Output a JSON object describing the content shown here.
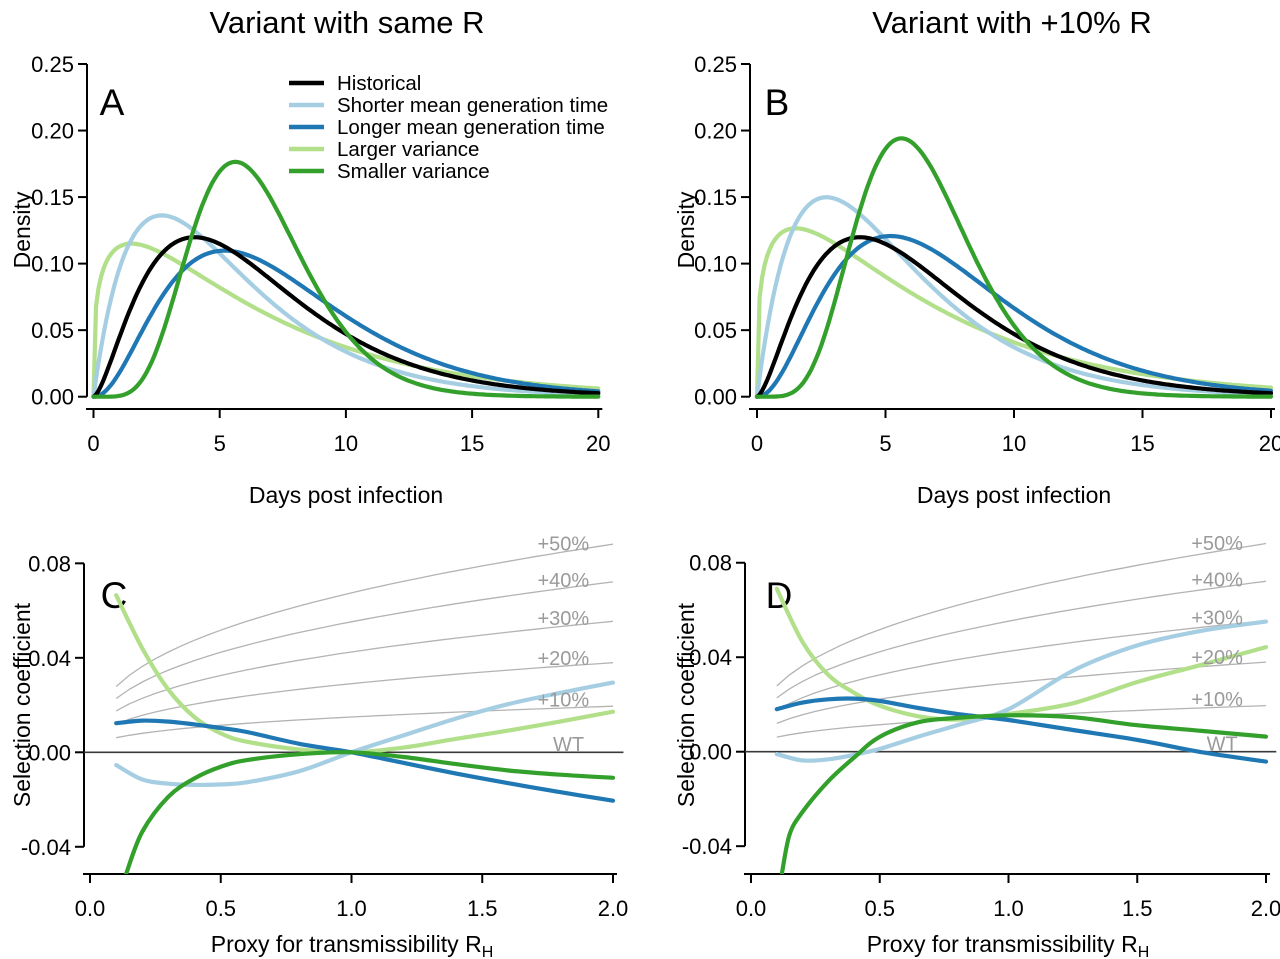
{
  "figure": {
    "left_title": "Variant with same R",
    "right_title": "Variant with +10% R"
  },
  "legend": {
    "entries": [
      {
        "label": "Historical",
        "color": "#000000"
      },
      {
        "label": "Shorter mean generation time",
        "color": "#A6CEE3"
      },
      {
        "label": "Longer mean generation time",
        "color": "#1F78B4"
      },
      {
        "label": "Larger variance",
        "color": "#B2DF8A"
      },
      {
        "label": "Smaller variance",
        "color": "#33A02C"
      }
    ]
  },
  "chart_data": [
    {
      "id": "A",
      "panel_label": "A",
      "type": "line",
      "title": "Variant with same R",
      "xlabel": "Days post infection",
      "ylabel": "Density",
      "xlim": [
        0,
        20
      ],
      "ylim": [
        0,
        0.25
      ],
      "xticks": [
        {
          "v": 0,
          "t": "0"
        },
        {
          "v": 5,
          "t": "5"
        },
        {
          "v": 10,
          "t": "10"
        },
        {
          "v": 15,
          "t": "15"
        },
        {
          "v": 20,
          "t": "20"
        }
      ],
      "yticks": [
        {
          "v": 0,
          "t": "0.00"
        },
        {
          "v": 0.05,
          "t": "0.05"
        },
        {
          "v": 0.1,
          "t": "0.10"
        },
        {
          "v": 0.15,
          "t": "0.15"
        },
        {
          "v": 0.2,
          "t": "0.20"
        },
        {
          "v": 0.25,
          "t": "0.25"
        }
      ],
      "model": "gamma_density",
      "has_legend": true,
      "series": [
        {
          "name": "Larger variance",
          "color": "#B2DF8A",
          "shape": 1.3,
          "scale": 5.0,
          "multiplier": 1.0,
          "peak_x": 1.5,
          "peak_y": 0.115
        },
        {
          "name": "Shorter mean generation time",
          "color": "#A6CEE3",
          "shape": 2.0,
          "scale": 2.7,
          "multiplier": 1.0,
          "peak_x": 2.7,
          "peak_y": 0.134
        },
        {
          "name": "Longer mean generation time",
          "color": "#1F78B4",
          "shape": 3.2,
          "scale": 2.36,
          "multiplier": 1.0,
          "peak_x": 5.2,
          "peak_y": 0.111
        },
        {
          "name": "Historical",
          "color": "#000000",
          "shape": 2.6,
          "scale": 2.5,
          "multiplier": 1.0,
          "peak_x": 4.0,
          "peak_y": 0.12
        },
        {
          "name": "Smaller variance",
          "color": "#33A02C",
          "shape": 7.34,
          "scale": 0.886,
          "multiplier": 1.0,
          "peak_x": 5.6,
          "peak_y": 0.176
        }
      ]
    },
    {
      "id": "B",
      "panel_label": "B",
      "type": "line",
      "title": "Variant with +10% R",
      "xlabel": "Days post infection",
      "ylabel": "Density",
      "xlim": [
        0,
        20
      ],
      "ylim": [
        0,
        0.25
      ],
      "xticks": [
        {
          "v": 0,
          "t": "0"
        },
        {
          "v": 5,
          "t": "5"
        },
        {
          "v": 10,
          "t": "10"
        },
        {
          "v": 15,
          "t": "15"
        },
        {
          "v": 20,
          "t": "20"
        }
      ],
      "yticks": [
        {
          "v": 0,
          "t": "0.00"
        },
        {
          "v": 0.05,
          "t": "0.05"
        },
        {
          "v": 0.1,
          "t": "0.10"
        },
        {
          "v": 0.15,
          "t": "0.15"
        },
        {
          "v": 0.2,
          "t": "0.20"
        },
        {
          "v": 0.25,
          "t": "0.25"
        }
      ],
      "model": "gamma_density",
      "has_legend": false,
      "series": [
        {
          "name": "Larger variance",
          "color": "#B2DF8A",
          "shape": 1.3,
          "scale": 5.0,
          "multiplier": 1.1,
          "peak_x": 1.5,
          "peak_y": 0.126
        },
        {
          "name": "Shorter mean generation time",
          "color": "#A6CEE3",
          "shape": 2.0,
          "scale": 2.7,
          "multiplier": 1.1,
          "peak_x": 2.7,
          "peak_y": 0.147
        },
        {
          "name": "Longer mean generation time",
          "color": "#1F78B4",
          "shape": 3.2,
          "scale": 2.36,
          "multiplier": 1.1,
          "peak_x": 5.2,
          "peak_y": 0.123
        },
        {
          "name": "Historical",
          "color": "#000000",
          "shape": 2.6,
          "scale": 2.5,
          "multiplier": 1.0,
          "peak_x": 4.0,
          "peak_y": 0.12
        },
        {
          "name": "Smaller variance",
          "color": "#33A02C",
          "shape": 7.34,
          "scale": 0.886,
          "multiplier": 1.1,
          "peak_x": 5.6,
          "peak_y": 0.194
        }
      ]
    },
    {
      "id": "C",
      "panel_label": "C",
      "type": "line",
      "title": "",
      "xlabel": "Proxy for transmissibility R",
      "xlabel_sub": "H",
      "ylabel": "Selection coefficient",
      "xlim": [
        0,
        2
      ],
      "ylim": [
        -0.052,
        0.092
      ],
      "xticks": [
        {
          "v": 0,
          "t": "0.0"
        },
        {
          "v": 0.5,
          "t": "0.5"
        },
        {
          "v": 1.0,
          "t": "1.0"
        },
        {
          "v": 1.5,
          "t": "1.5"
        },
        {
          "v": 2.0,
          "t": "2.0"
        }
      ],
      "yticks": [
        {
          "v": -0.04,
          "t": "-0.04"
        },
        {
          "v": 0,
          "t": "0.00"
        },
        {
          "v": 0.04,
          "t": "0.04"
        },
        {
          "v": 0.08,
          "t": "0.08"
        }
      ],
      "model": "sampled_points",
      "has_legend": false,
      "reference": {
        "model": "euler_lotka_gamma",
        "shape": 2.6,
        "scale": 2.5,
        "advantages": [
          0.1,
          0.2,
          0.3,
          0.4,
          0.5
        ],
        "labels": [
          "+10%",
          "+20%",
          "+30%",
          "+40%",
          "+50%"
        ],
        "wt_label": "WT",
        "curve_color": "#b3b3b3",
        "label_color": "#9a9a9a",
        "wt_color": "#3a3a3a",
        "label_x": 1.81,
        "wt_label_x": 1.83
      },
      "series": [
        {
          "name": "Larger variance",
          "color": "#B2DF8A",
          "x": [
            0.1,
            0.2,
            0.3,
            0.4,
            0.5,
            0.6,
            0.8,
            1.0,
            1.2,
            1.4,
            1.6,
            1.8,
            2.0
          ],
          "y": [
            0.0665,
            0.044,
            0.0265,
            0.0148,
            0.008,
            0.0045,
            0.0012,
            0.0,
            0.002,
            0.0057,
            0.0092,
            0.0131,
            0.0172
          ]
        },
        {
          "name": "Shorter mean generation time",
          "color": "#A6CEE3",
          "x": [
            0.1,
            0.2,
            0.3,
            0.4,
            0.5,
            0.6,
            0.8,
            1.0,
            1.2,
            1.4,
            1.6,
            1.8,
            2.0
          ],
          "y": [
            -0.0054,
            -0.0115,
            -0.0133,
            -0.0138,
            -0.0136,
            -0.0127,
            -0.008,
            0.0,
            0.0072,
            0.0143,
            0.0204,
            0.0252,
            0.0295
          ]
        },
        {
          "name": "Longer mean generation time",
          "color": "#1F78B4",
          "x": [
            0.1,
            0.2,
            0.3,
            0.4,
            0.5,
            0.6,
            0.8,
            1.0,
            1.2,
            1.4,
            1.6,
            1.8,
            2.0
          ],
          "y": [
            0.0123,
            0.0134,
            0.013,
            0.0118,
            0.0103,
            0.0086,
            0.0036,
            0.0,
            -0.0045,
            -0.009,
            -0.0131,
            -0.0169,
            -0.0205
          ]
        },
        {
          "name": "Smaller variance",
          "color": "#33A02C",
          "x": [
            0.138,
            0.2,
            0.3,
            0.4,
            0.5,
            0.6,
            0.8,
            1.0,
            1.2,
            1.4,
            1.6,
            1.8,
            2.0
          ],
          "y": [
            -0.0515,
            -0.0336,
            -0.0188,
            -0.011,
            -0.0061,
            -0.0033,
            -0.0008,
            0.0,
            -0.002,
            -0.005,
            -0.0077,
            -0.0095,
            -0.0108
          ]
        }
      ]
    },
    {
      "id": "D",
      "panel_label": "D",
      "type": "line",
      "title": "",
      "xlabel": "Proxy for transmissibility R",
      "xlabel_sub": "H",
      "ylabel": "Selection coefficient",
      "xlim": [
        0,
        2
      ],
      "ylim": [
        -0.052,
        0.092
      ],
      "xticks": [
        {
          "v": 0,
          "t": "0.0"
        },
        {
          "v": 0.5,
          "t": "0.5"
        },
        {
          "v": 1.0,
          "t": "1.0"
        },
        {
          "v": 1.5,
          "t": "1.5"
        },
        {
          "v": 2.0,
          "t": "2.0"
        }
      ],
      "yticks": [
        {
          "v": -0.04,
          "t": "-0.04"
        },
        {
          "v": 0,
          "t": "0.00"
        },
        {
          "v": 0.04,
          "t": "0.04"
        },
        {
          "v": 0.08,
          "t": "0.08"
        }
      ],
      "model": "sampled_points",
      "has_legend": false,
      "reference": {
        "model": "euler_lotka_gamma",
        "shape": 2.6,
        "scale": 2.5,
        "advantages": [
          0.1,
          0.2,
          0.3,
          0.4,
          0.5
        ],
        "labels": [
          "+10%",
          "+20%",
          "+30%",
          "+40%",
          "+50%"
        ],
        "wt_label": "WT",
        "curve_color": "#b3b3b3",
        "label_color": "#9a9a9a",
        "wt_color": "#3a3a3a",
        "label_x": 1.81,
        "wt_label_x": 1.83
      },
      "series": [
        {
          "name": "Larger variance",
          "color": "#B2DF8A",
          "x": [
            0.1,
            0.2,
            0.3,
            0.4,
            0.5,
            0.65,
            0.8,
            1.0,
            1.25,
            1.5,
            1.75,
            2.0
          ],
          "y": [
            0.069,
            0.0465,
            0.0325,
            0.025,
            0.0195,
            0.015,
            0.0136,
            0.016,
            0.0205,
            0.0295,
            0.0368,
            0.0443
          ]
        },
        {
          "name": "Shorter mean generation time",
          "color": "#A6CEE3",
          "x": [
            0.1,
            0.2,
            0.3,
            0.4,
            0.5,
            0.65,
            0.8,
            1.0,
            1.25,
            1.5,
            1.75,
            2.0
          ],
          "y": [
            -0.001,
            -0.0037,
            -0.0032,
            -0.0013,
            0.0012,
            0.0064,
            0.0112,
            0.018,
            0.0343,
            0.045,
            0.0512,
            0.0551
          ]
        },
        {
          "name": "Longer mean generation time",
          "color": "#1F78B4",
          "x": [
            0.1,
            0.2,
            0.3,
            0.4,
            0.5,
            0.65,
            0.8,
            1.0,
            1.25,
            1.5,
            1.75,
            2.0
          ],
          "y": [
            0.018,
            0.0208,
            0.0222,
            0.0225,
            0.0215,
            0.0185,
            0.016,
            0.0134,
            0.0092,
            0.005,
            -0.0002,
            -0.0042
          ]
        },
        {
          "name": "Smaller variance",
          "color": "#33A02C",
          "x": [
            0.12,
            0.15,
            0.2,
            0.3,
            0.4,
            0.5,
            0.65,
            0.8,
            1.0,
            1.25,
            1.5,
            1.75,
            2.0
          ],
          "y": [
            -0.0515,
            -0.035,
            -0.0255,
            -0.0125,
            -0.0025,
            0.0063,
            0.0125,
            0.0143,
            0.0154,
            0.0146,
            0.0112,
            0.0088,
            0.0064
          ]
        }
      ]
    }
  ]
}
